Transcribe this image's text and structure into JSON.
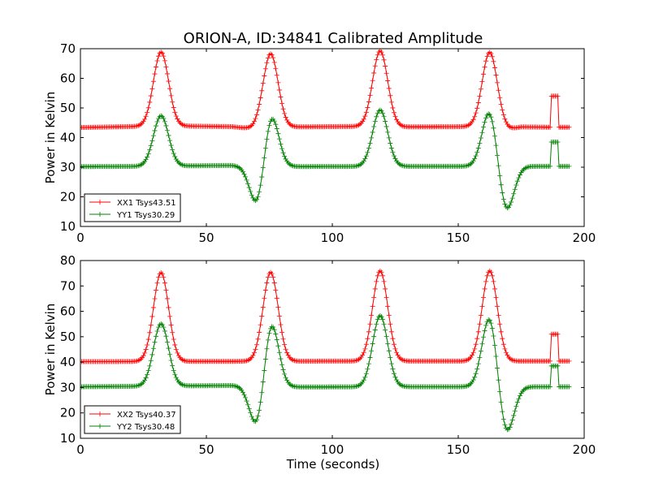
{
  "figure": {
    "title": "ORION-A, ID:34841 Calibrated Amplitude",
    "xlabel": "Time (seconds)"
  },
  "chart_data": [
    {
      "type": "line",
      "ylabel": "Power in Kelvin",
      "xlabel": "",
      "xlim": [
        0,
        200
      ],
      "ylim": [
        10,
        70
      ],
      "xticks": [
        0,
        50,
        100,
        150,
        200
      ],
      "yticks": [
        10,
        20,
        30,
        40,
        50,
        60,
        70
      ],
      "grid": false,
      "legend": "lower-left",
      "series": [
        {
          "name": "XX1 Tsys43.51",
          "color": "#ff0000",
          "baseline": [
            [
              0,
              43.4
            ],
            [
              25,
              43.8
            ],
            [
              40,
              43.9
            ],
            [
              60,
              43.7
            ],
            [
              68,
              43.0
            ],
            [
              85,
              43.6
            ],
            [
              115,
              43.8
            ],
            [
              128,
              43.6
            ],
            [
              155,
              43.7
            ],
            [
              170,
              42.8
            ],
            [
              175,
              43.6
            ],
            [
              186,
              43.5
            ],
            [
              194,
              43.5
            ]
          ],
          "peaks": [
            {
              "x": 32,
              "height": 25,
              "width": 3.0
            },
            {
              "x": 75.5,
              "height": 25,
              "width": 3.0
            },
            {
              "x": 119,
              "height": 25.5,
              "width": 3.0
            },
            {
              "x": 162.5,
              "height": 25.5,
              "width": 3.0
            }
          ],
          "step": {
            "x0": 187,
            "x1": 189.5,
            "y": 54
          }
        },
        {
          "name": "YY1 Tsys30.29",
          "color": "#008000",
          "baseline": [
            [
              0,
              30.2
            ],
            [
              25,
              30.3
            ],
            [
              60,
              30.6
            ],
            [
              66,
              30.4
            ],
            [
              80,
              30.2
            ],
            [
              130,
              30.3
            ],
            [
              155,
              30.3
            ],
            [
              175,
              30.3
            ],
            [
              194,
              30.3
            ]
          ],
          "peaks": [
            {
              "x": 32,
              "height": 17,
              "width": 3.0
            },
            {
              "x": 75.5,
              "height": 19,
              "width": 3.0
            },
            {
              "x": 119,
              "height": 19,
              "width": 3.0
            },
            {
              "x": 162.5,
              "height": 19,
              "width": 3.0
            },
            {
              "x": 70.5,
              "height": -15,
              "width": 3.0
            },
            {
              "x": 169,
              "height": -15.5,
              "width": 3.0
            }
          ],
          "step": {
            "x0": 187,
            "x1": 189.5,
            "y": 38.5
          }
        }
      ]
    },
    {
      "type": "line",
      "ylabel": "Power in Kelvin",
      "xlabel": "Time (seconds)",
      "xlim": [
        0,
        200
      ],
      "ylim": [
        10,
        80
      ],
      "xticks": [
        0,
        50,
        100,
        150,
        200
      ],
      "yticks": [
        10,
        20,
        30,
        40,
        50,
        60,
        70,
        80
      ],
      "grid": false,
      "legend": "lower-left",
      "series": [
        {
          "name": "XX2 Tsys40.37",
          "color": "#ff0000",
          "baseline": [
            [
              0,
              40.2
            ],
            [
              60,
              40.3
            ],
            [
              100,
              40.4
            ],
            [
              194,
              40.4
            ]
          ],
          "peaks": [
            {
              "x": 32,
              "height": 35,
              "width": 3.0
            },
            {
              "x": 75.5,
              "height": 35,
              "width": 3.0
            },
            {
              "x": 119,
              "height": 35.5,
              "width": 3.0
            },
            {
              "x": 162.5,
              "height": 35.5,
              "width": 3.0
            }
          ],
          "step": {
            "x0": 187,
            "x1": 189.5,
            "y": 51
          }
        },
        {
          "name": "YY2 Tsys30.48",
          "color": "#008000",
          "baseline": [
            [
              0,
              30.3
            ],
            [
              35,
              30.6
            ],
            [
              62,
              30.8
            ],
            [
              66,
              30.5
            ],
            [
              80,
              30.2
            ],
            [
              130,
              30.3
            ],
            [
              194,
              30.3
            ]
          ],
          "peaks": [
            {
              "x": 32,
              "height": 24.5,
              "width": 3.0
            },
            {
              "x": 75.5,
              "height": 27.5,
              "width": 3.0
            },
            {
              "x": 119,
              "height": 28,
              "width": 3.0
            },
            {
              "x": 162.5,
              "height": 28,
              "width": 3.0
            },
            {
              "x": 70.5,
              "height": -18.5,
              "width": 3.0
            },
            {
              "x": 169,
              "height": -19,
              "width": 3.0
            }
          ],
          "step": {
            "x0": 187,
            "x1": 189.5,
            "y": 38.5
          }
        }
      ]
    }
  ]
}
